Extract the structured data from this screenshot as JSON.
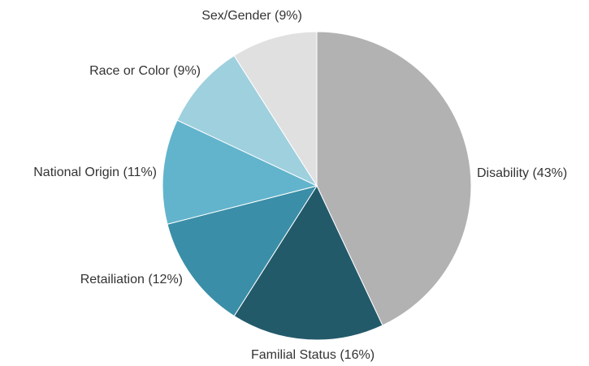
{
  "chart_data": {
    "type": "pie",
    "categories": [
      "Disability (43%)",
      "Familial Status (16%)",
      "Retailiation (12%)",
      "National Origin (11%)",
      "Race or Color (9%)",
      "Sex/Gender (9%)"
    ],
    "values": [
      43,
      16,
      12,
      11,
      9,
      9
    ],
    "colors": [
      "#b2b2b2",
      "#235a6a",
      "#3a8ea8",
      "#62b4cc",
      "#9fd0de",
      "#e0e0e0"
    ]
  }
}
